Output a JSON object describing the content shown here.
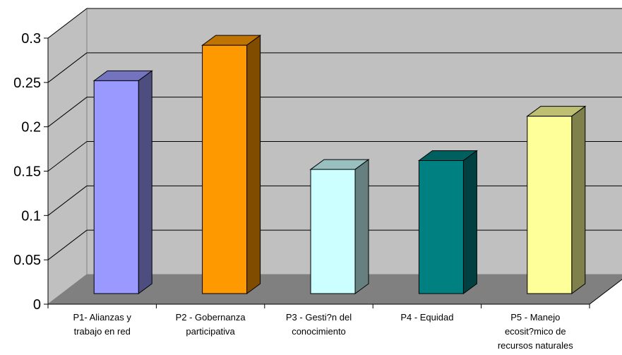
{
  "chart_data": {
    "type": "bar",
    "title": "",
    "xlabel": "",
    "ylabel": "",
    "categories": [
      [
        "P1- Alianzas y",
        "trabajo en red"
      ],
      [
        "P2 - Gobernanza",
        "participativa"
      ],
      [
        "P3 - Gesti?n del",
        "conocimiento"
      ],
      [
        "P4 - Equidad"
      ],
      [
        "P5 - Manejo",
        "ecosit?mico de",
        "recursos naturales"
      ]
    ],
    "values": [
      0.24,
      0.28,
      0.14,
      0.15,
      0.2
    ],
    "ylim": [
      0,
      0.3
    ],
    "yticks": [
      "0",
      "0.05",
      "0.1",
      "0.15",
      "0.2",
      "0.25",
      "0.3"
    ],
    "grid": true,
    "legend": "none",
    "style": "3d-column",
    "colors": {
      "wall": "#c0c0c0",
      "floor": "#808080",
      "gridline": "#000000",
      "bars": [
        {
          "front": "#9999ff",
          "side": "#4d4d80",
          "top": "#7373bf"
        },
        {
          "front": "#ff9900",
          "side": "#804d00",
          "top": "#bf7300"
        },
        {
          "front": "#ccffff",
          "side": "#668080",
          "top": "#99bfbf"
        },
        {
          "front": "#008080",
          "side": "#004040",
          "top": "#006060"
        },
        {
          "front": "#ffff99",
          "side": "#80804d",
          "top": "#bfbf73"
        }
      ]
    }
  }
}
